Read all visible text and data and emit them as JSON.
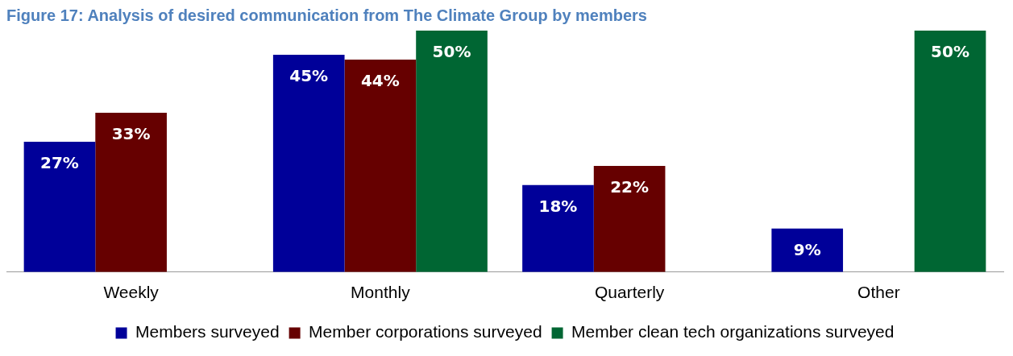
{
  "chart_data": {
    "type": "bar",
    "title": "Figure 17: Analysis of desired communication from The Climate Group by members",
    "categories": [
      "Weekly",
      "Monthly",
      "Quarterly",
      "Other"
    ],
    "series": [
      {
        "name": "Members surveyed",
        "color": "#000099",
        "values": [
          27,
          45,
          18,
          9
        ],
        "value_labels": [
          "27%",
          "45%",
          "18%",
          "9%"
        ]
      },
      {
        "name": "Member corporations surveyed",
        "color": "#660000",
        "values": [
          33,
          44,
          22,
          null
        ],
        "value_labels": [
          "33%",
          "44%",
          "22%",
          null
        ]
      },
      {
        "name": "Member clean tech organizations surveyed",
        "color": "#006633",
        "values": [
          0,
          50,
          0,
          50
        ],
        "value_labels": [
          null,
          "50%",
          null,
          "50%"
        ]
      }
    ],
    "legend": "bottom"
  }
}
